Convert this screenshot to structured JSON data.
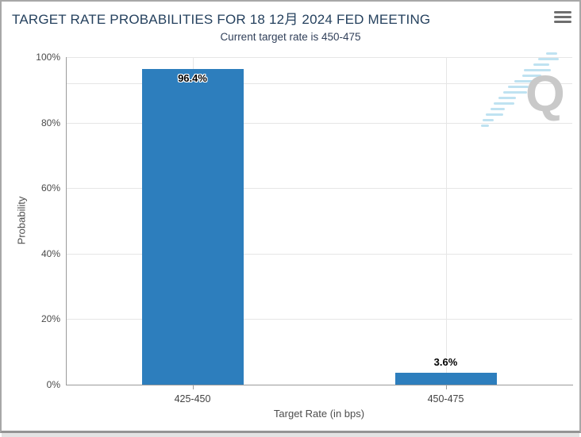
{
  "header": {
    "title": "TARGET RATE PROBABILITIES FOR 18 12月 2024 FED MEETING",
    "subtitle": "Current target rate is 450-475"
  },
  "menu": {
    "icon": "hamburger-icon"
  },
  "watermark": {
    "letter": "Q",
    "icon": "quikstrike-logo"
  },
  "colors": {
    "bar": "#2d7ebd",
    "title": "#25415e",
    "gridline": "#e6e6e6",
    "axis": "#9b9b9b",
    "watermark_gray": "#c9c9c9",
    "watermark_blue": "#bfe2f1"
  },
  "chart_data": {
    "type": "bar",
    "title": "TARGET RATE PROBABILITIES FOR 18 12月 2024 FED MEETING",
    "subtitle": "Current target rate is 450-475",
    "categories": [
      "425-450",
      "450-475"
    ],
    "values": [
      96.4,
      3.6
    ],
    "data_labels": [
      "96.4%",
      "3.6%"
    ],
    "label_position": [
      "inside-top",
      "above"
    ],
    "xlabel": "Target Rate (in bps)",
    "ylabel": "Probability",
    "ylim": [
      0,
      100
    ],
    "yticks": [
      {
        "value": 0,
        "label": "0%"
      },
      {
        "value": 20,
        "label": "20%"
      },
      {
        "value": 40,
        "label": "40%"
      },
      {
        "value": 60,
        "label": "60%"
      },
      {
        "value": 80,
        "label": "80%"
      },
      {
        "value": 100,
        "label": "100%"
      }
    ],
    "extra_gridline_value": 92,
    "grid": true,
    "legend": "none",
    "bar_color": "#2d7ebd"
  }
}
